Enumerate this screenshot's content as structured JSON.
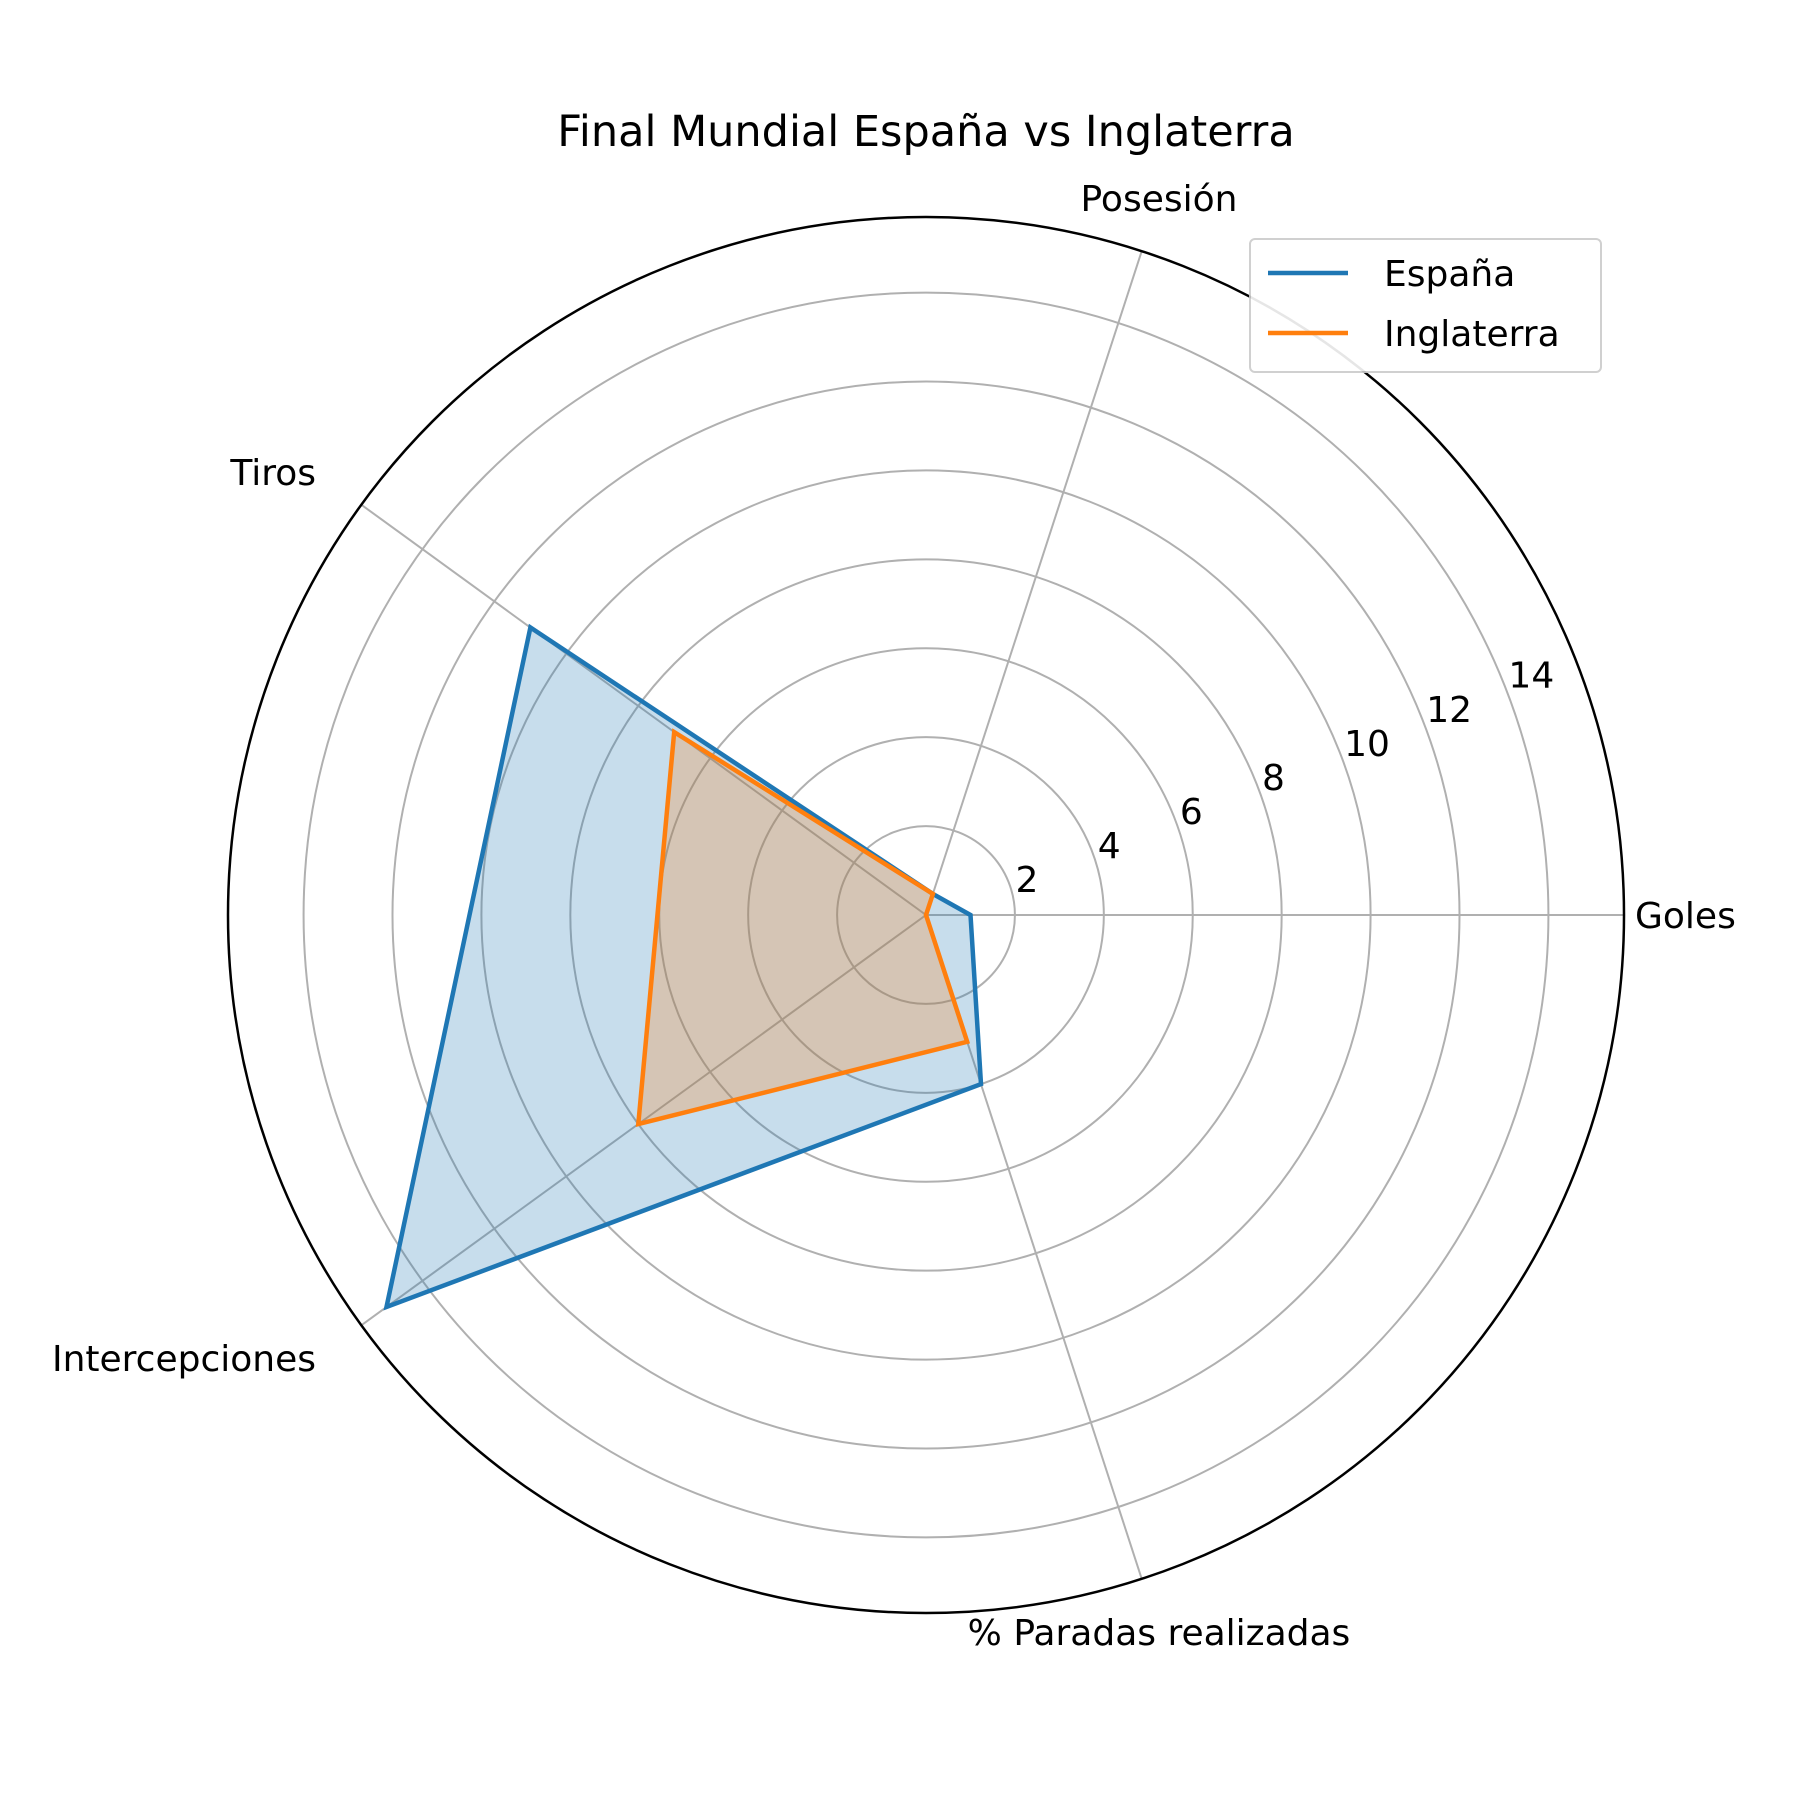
{
  "chart_data": {
    "type": "radar",
    "title": "Final Mundial España vs Inglaterra",
    "categories": [
      "Goles",
      "Posesión",
      "Tiros",
      "Intercepciones",
      "% Paradas realizadas"
    ],
    "radial_ticks": [
      2,
      4,
      6,
      8,
      10,
      12,
      14
    ],
    "rlim": [
      0,
      15.7
    ],
    "grid": true,
    "legend_position": "top-right",
    "series": [
      {
        "name": "España",
        "color": "#1f77b4",
        "values": [
          1,
          0.5,
          11,
          15,
          4
        ]
      },
      {
        "name": "Inglaterra",
        "color": "#ff7f0e",
        "values": [
          0,
          0.5,
          7,
          8,
          3
        ]
      }
    ]
  }
}
